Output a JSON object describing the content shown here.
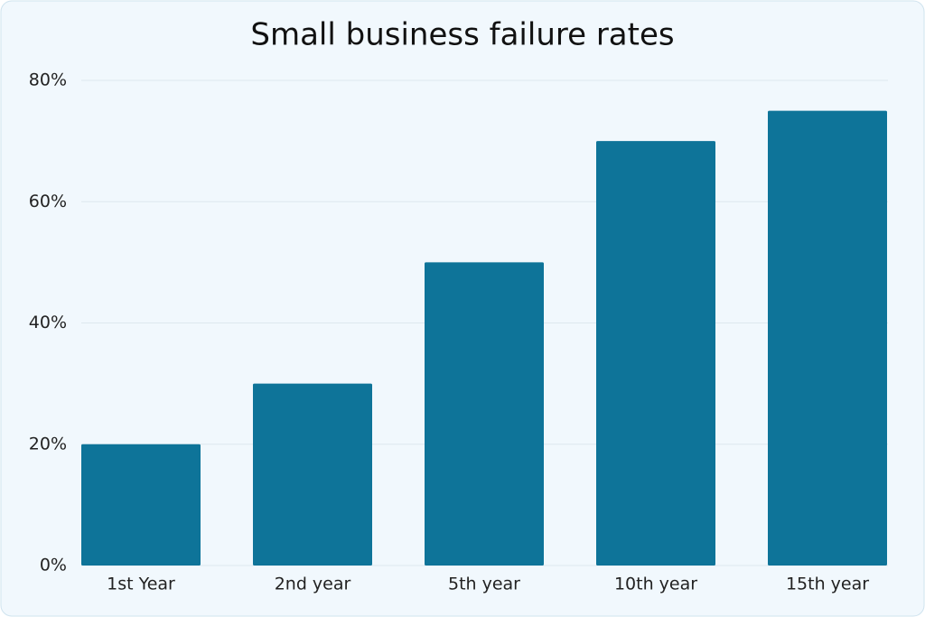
{
  "chart_data": {
    "type": "bar",
    "title": "Small business failure rates",
    "categories": [
      "1st Year",
      "2nd year",
      "5th year",
      "10th year",
      "15th year"
    ],
    "values": [
      20,
      30,
      50,
      70,
      75
    ],
    "color": "#0e7499",
    "ylim": [
      0,
      80
    ],
    "yticks": [
      {
        "value": 0,
        "label": "0%"
      },
      {
        "value": 20,
        "label": "20%"
      },
      {
        "value": 40,
        "label": "40%"
      },
      {
        "value": 60,
        "label": "60%"
      },
      {
        "value": 80,
        "label": "80%"
      }
    ],
    "grid": true
  }
}
